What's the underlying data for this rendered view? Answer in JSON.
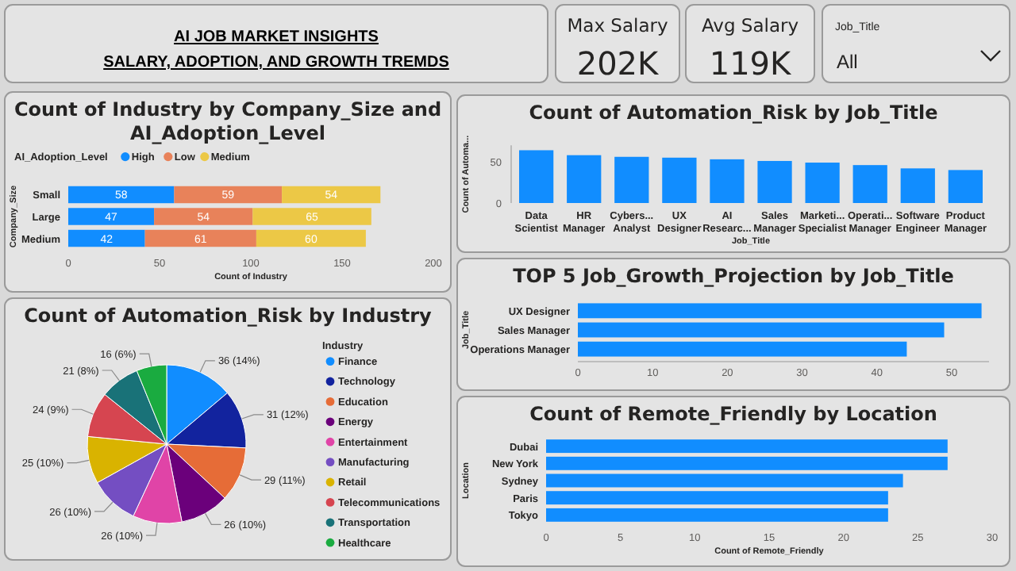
{
  "chart_data": [
    {
      "type": "other",
      "title": "AI JOB MARKET INSIGHTS",
      "subtitle": "SALARY, ADOPTION, AND GROWTH TREMDS"
    },
    {
      "type": "other",
      "title": "Max Salary",
      "annotations": [
        "202K"
      ]
    },
    {
      "type": "other",
      "title": "Avg Salary",
      "annotations": [
        "119K"
      ]
    },
    {
      "type": "other",
      "title": "Job_Title",
      "annotations": [
        "All"
      ]
    },
    {
      "type": "bar",
      "title": "Count of Industry by Company_Size and AI_Adoption_Level",
      "orientation": "horizontal",
      "stacked": true,
      "categories": [
        "Small",
        "Large",
        "Medium"
      ],
      "series": [
        {
          "name": "High",
          "color": "#118dff",
          "values": [
            58,
            47,
            42
          ]
        },
        {
          "name": "Low",
          "color": "#e8825a",
          "values": [
            59,
            54,
            61
          ]
        },
        {
          "name": "Medium",
          "color": "#ecc846",
          "values": [
            54,
            65,
            60
          ]
        }
      ],
      "xlim": [
        0,
        200
      ],
      "xticks": [
        0,
        50,
        100,
        150,
        200
      ],
      "xlabel": "Count of Industry",
      "ylabel": "Company_Size",
      "legend_title": "AI_Adoption_Level",
      "legend": "top left",
      "data_labels": true
    },
    {
      "type": "pie",
      "title": "Count of Automation_Risk by Industry",
      "legend_title": "Industry",
      "legend": "right",
      "categories": [
        "Finance",
        "Technology",
        "Education",
        "Energy",
        "Entertainment",
        "Manufacturing",
        "Retail",
        "Telecommunications",
        "Transportation",
        "Healthcare"
      ],
      "values": [
        36,
        31,
        29,
        26,
        26,
        26,
        25,
        24,
        21,
        16
      ],
      "colors": [
        "#118dff",
        "#12239e",
        "#e66c37",
        "#6b007b",
        "#e044a7",
        "#744ec2",
        "#d9b300",
        "#d64550",
        "#197278",
        "#1aab40"
      ],
      "value_labels": [
        "36 (14%)",
        "31 (12%)",
        "29 (11%)",
        "26 (10%)",
        "26 (10%)",
        "26 (10%)",
        "25 (10%)",
        "24 (9%)",
        "21 (8%)",
        "16 (6%)"
      ]
    },
    {
      "type": "bar",
      "title": "Count of Automation_Risk by Job_Title",
      "categories": [
        "Data Scientist",
        "HR Manager",
        "Cybers... Analyst",
        "UX Designer",
        "AI Researc...",
        "Sales Manager",
        "Marketi... Specialist",
        "Operati... Manager",
        "Software Engineer",
        "Product Manager"
      ],
      "values": [
        64,
        58,
        56,
        55,
        53,
        51,
        49,
        46,
        42,
        40
      ],
      "color": "#118dff",
      "ylim": [
        0,
        70
      ],
      "yticks": [
        0,
        50
      ],
      "xlabel": "Job_Title",
      "ylabel": "Count of Automa..."
    },
    {
      "type": "bar",
      "title": "TOP 5 Job_Growth_Projection by Job_Title",
      "orientation": "horizontal",
      "categories": [
        "UX Designer",
        "Sales Manager",
        "Operations Manager"
      ],
      "values": [
        54,
        49,
        44
      ],
      "color": "#118dff",
      "xlim": [
        0,
        55
      ],
      "xticks": [
        0,
        10,
        20,
        30,
        40,
        50
      ],
      "ylabel": "Job_Title"
    },
    {
      "type": "bar",
      "title": "Count of Remote_Friendly by Location",
      "orientation": "horizontal",
      "categories": [
        "Dubai",
        "New York",
        "Sydney",
        "Paris",
        "Tokyo"
      ],
      "values": [
        27,
        27,
        24,
        23,
        23
      ],
      "color": "#118dff",
      "xlim": [
        0,
        30
      ],
      "xticks": [
        0,
        5,
        10,
        15,
        20,
        25,
        30
      ],
      "xlabel": "Count of Remote_Friendly",
      "ylabel": "Location"
    }
  ]
}
